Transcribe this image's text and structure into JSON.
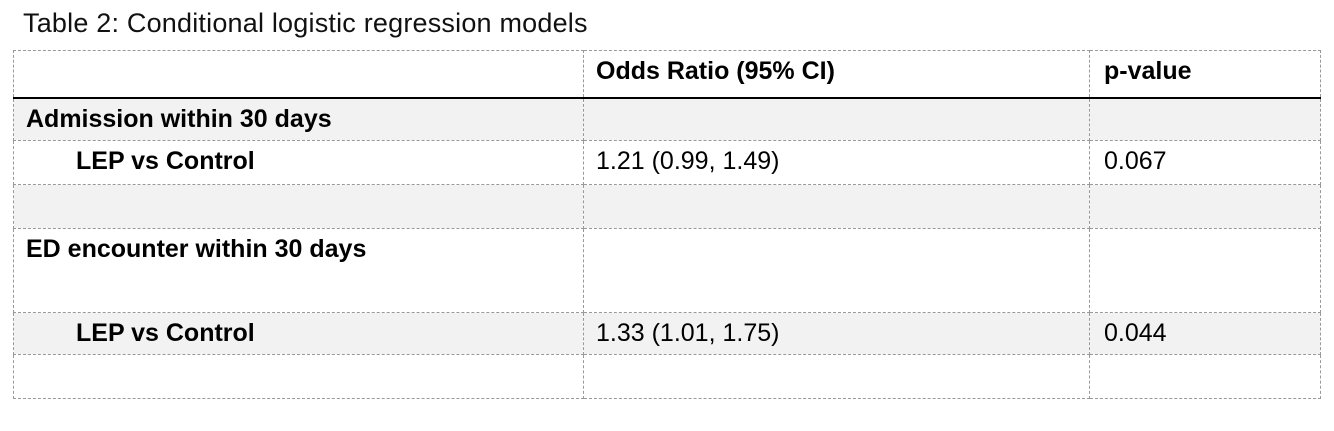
{
  "title": "Table 2: Conditional logistic regression models",
  "colors": {
    "row_shading": "#f2f2f2",
    "grid_border": "#999999",
    "header_rule": "#000000",
    "text": "#000000"
  },
  "table": {
    "columns": [
      {
        "label": ""
      },
      {
        "label": "Odds Ratio (95% CI)"
      },
      {
        "label": "p-value"
      }
    ],
    "rows": [
      {
        "type": "section",
        "shaded": true,
        "label": "Admission within 30 days",
        "odds_ratio": "",
        "p_value": ""
      },
      {
        "type": "result",
        "shaded": false,
        "label": "LEP vs Control",
        "odds_ratio": "1.21 (0.99, 1.49)",
        "p_value": "0.067"
      },
      {
        "type": "spacer",
        "shaded": true,
        "label": "",
        "odds_ratio": "",
        "p_value": ""
      },
      {
        "type": "section",
        "shaded": false,
        "label": "ED encounter within 30 days",
        "odds_ratio": "",
        "p_value": ""
      },
      {
        "type": "result",
        "shaded": true,
        "label": "LEP vs Control",
        "odds_ratio": "1.33 (1.01, 1.75)",
        "p_value": "0.044"
      },
      {
        "type": "spacer",
        "shaded": false,
        "label": "",
        "odds_ratio": "",
        "p_value": ""
      }
    ]
  }
}
